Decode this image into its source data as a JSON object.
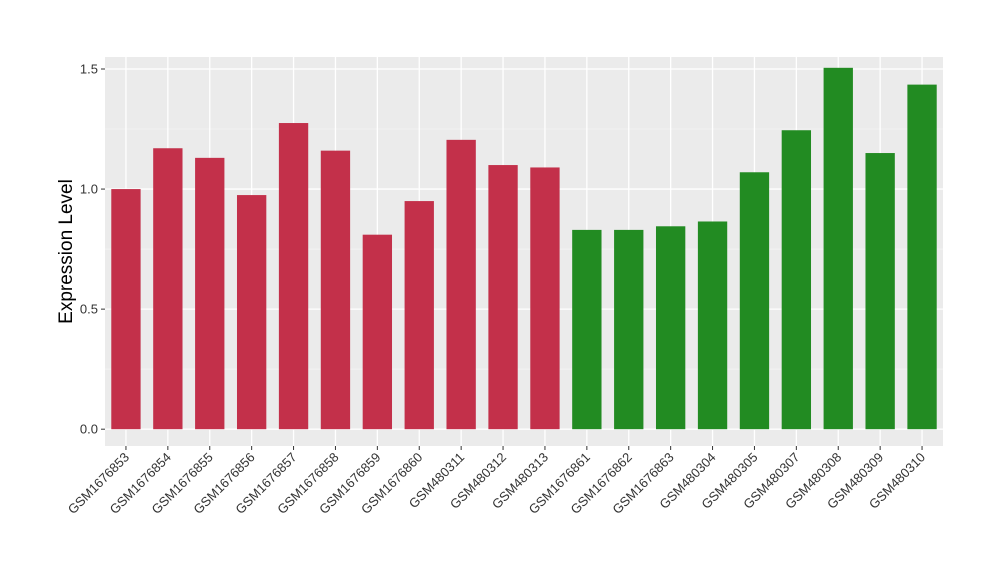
{
  "chart_data": {
    "type": "bar",
    "title": "",
    "xlabel": "",
    "ylabel": "Expression Level",
    "ylim": [
      -0.07,
      1.55
    ],
    "yticks": [
      0.0,
      0.5,
      1.0,
      1.5
    ],
    "ytick_labels": [
      "0.0",
      "0.5",
      "1.0",
      "1.5"
    ],
    "grid": true,
    "legend": "none",
    "categories": [
      "GSM1676853",
      "GSM1676854",
      "GSM1676855",
      "GSM1676856",
      "GSM1676857",
      "GSM1676858",
      "GSM1676859",
      "GSM1676860",
      "GSM480311",
      "GSM480312",
      "GSM480313",
      "GSM1676861",
      "GSM1676862",
      "GSM1676863",
      "GSM480304",
      "GSM480305",
      "GSM480307",
      "GSM480308",
      "GSM480309",
      "GSM480310"
    ],
    "values": [
      1.0,
      1.17,
      1.13,
      0.975,
      1.275,
      1.16,
      0.81,
      0.95,
      1.205,
      1.1,
      1.09,
      0.83,
      0.83,
      0.845,
      0.865,
      1.07,
      1.245,
      1.505,
      1.15,
      1.435
    ],
    "groups": [
      "red",
      "red",
      "red",
      "red",
      "red",
      "red",
      "red",
      "red",
      "red",
      "red",
      "red",
      "green",
      "green",
      "green",
      "green",
      "green",
      "green",
      "green",
      "green",
      "green"
    ],
    "colors": {
      "red": "#C3304A",
      "green": "#228B22",
      "panel": "#EBEBEB",
      "grid_major": "#FFFFFF",
      "grid_minor": "#F5F5F5",
      "tick": "#333333"
    }
  }
}
